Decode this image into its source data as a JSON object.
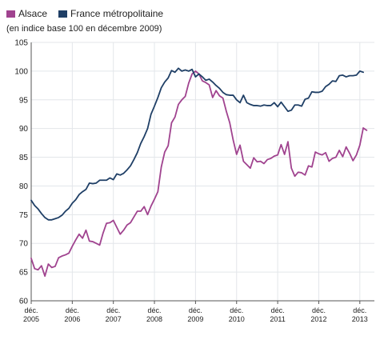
{
  "legend": {
    "series": [
      {
        "label": "Alsace",
        "color": "#a0438f"
      },
      {
        "label": "France métropolitaine",
        "color": "#1f3f66"
      }
    ]
  },
  "subtitle": "(en indice base 100 en décembre 2009)",
  "chart_data": {
    "type": "line",
    "subtitle": "(en indice base 100 en décembre 2009)",
    "xlabel": "",
    "ylabel": "",
    "x_unit": "month",
    "x_start": "2005-12",
    "x_end": "2013-05",
    "x_ticks": [
      {
        "date": "2005-12",
        "label": [
          "déc.",
          "2005"
        ]
      },
      {
        "date": "2006-12",
        "label": [
          "déc.",
          "2006"
        ]
      },
      {
        "date": "2007-12",
        "label": [
          "déc.",
          "2007"
        ]
      },
      {
        "date": "2008-12",
        "label": [
          "déc.",
          "2008"
        ]
      },
      {
        "date": "2009-12",
        "label": [
          "déc.",
          "2009"
        ]
      },
      {
        "date": "2010-12",
        "label": [
          "déc.",
          "2010"
        ]
      },
      {
        "date": "2011-12",
        "label": [
          "déc.",
          "2011"
        ]
      },
      {
        "date": "2012-12",
        "label": [
          "déc.",
          "2012"
        ]
      },
      {
        "date": "2013-12",
        "label": [
          "déc.",
          "2013"
        ]
      }
    ],
    "ylim": [
      60,
      105
    ],
    "y_ticks": [
      60,
      65,
      70,
      75,
      80,
      85,
      90,
      95,
      100,
      105
    ],
    "grid": true,
    "legend_position": "top-left",
    "series": [
      {
        "name": "Alsace",
        "color": "#a0438f",
        "values": [
          67.4,
          65.6,
          65.4,
          66.1,
          64.3,
          66.4,
          65.8,
          66.0,
          67.5,
          67.8,
          68.0,
          68.3,
          69.5,
          70.6,
          71.6,
          70.9,
          72.3,
          70.4,
          70.3,
          70.0,
          69.7,
          71.8,
          73.5,
          73.6,
          74.0,
          72.8,
          71.6,
          72.3,
          73.2,
          73.6,
          74.6,
          75.6,
          75.6,
          76.4,
          75.0,
          76.5,
          77.7,
          79.0,
          83.3,
          85.9,
          87.0,
          91.0,
          92.0,
          94.2,
          95.0,
          95.6,
          97.9,
          99.5,
          100.0,
          99.5,
          98.3,
          98.0,
          97.6,
          95.4,
          96.6,
          95.7,
          95.3,
          93.0,
          91.0,
          88.0,
          85.5,
          87.1,
          84.3,
          83.7,
          83.1,
          84.9,
          84.2,
          84.3,
          83.9,
          84.6,
          84.8,
          85.2,
          85.4,
          87.2,
          85.5,
          87.7,
          83.1,
          81.7,
          82.4,
          82.3,
          81.9,
          83.5,
          83.3,
          85.9,
          85.6,
          85.4,
          85.8,
          84.3,
          84.8,
          85.0,
          86.2,
          85.1,
          86.8,
          85.7,
          84.4,
          85.4,
          87.1,
          90.1,
          89.7
        ]
      },
      {
        "name": "France métropolitaine",
        "color": "#1f3f66",
        "values": [
          77.5,
          76.6,
          76.0,
          75.2,
          74.5,
          74.1,
          74.1,
          74.3,
          74.5,
          74.9,
          75.6,
          76.1,
          77.0,
          77.6,
          78.5,
          79.0,
          79.4,
          80.5,
          80.4,
          80.5,
          81.0,
          81.0,
          81.0,
          81.4,
          81.1,
          82.1,
          81.9,
          82.2,
          82.8,
          83.5,
          84.6,
          85.8,
          87.4,
          88.6,
          90.0,
          92.5,
          93.9,
          95.4,
          97.1,
          98.1,
          98.8,
          100.1,
          99.8,
          100.5,
          100.0,
          100.2,
          100.0,
          100.3,
          99.0,
          99.5,
          99.0,
          98.4,
          98.6,
          98.1,
          97.5,
          97.0,
          96.3,
          95.9,
          95.8,
          95.8,
          95.0,
          94.5,
          95.8,
          94.5,
          94.2,
          94.0,
          94.0,
          93.9,
          94.1,
          94.0,
          94.0,
          94.5,
          93.8,
          94.6,
          93.8,
          93.0,
          93.2,
          94.1,
          94.1,
          93.9,
          95.1,
          95.3,
          96.4,
          96.3,
          96.3,
          96.5,
          97.3,
          97.7,
          98.3,
          98.2,
          99.2,
          99.3,
          99.0,
          99.2,
          99.2,
          99.3,
          100.0,
          99.8
        ]
      }
    ]
  }
}
